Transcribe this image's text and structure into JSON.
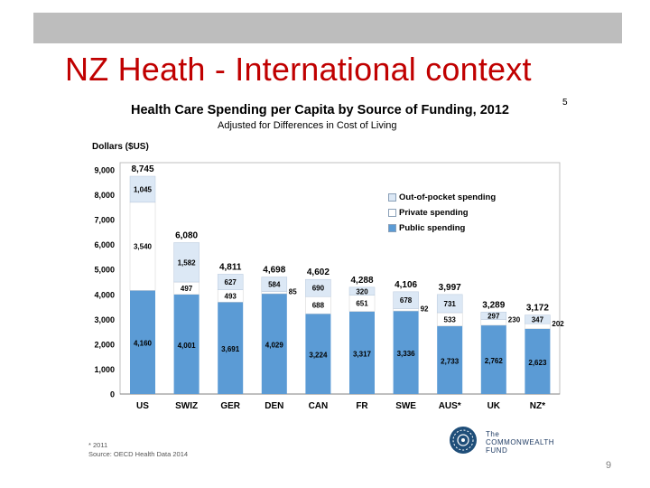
{
  "slide": {
    "title": "NZ Heath - International context",
    "page_number": "9",
    "page_ref": "5"
  },
  "chart_data": {
    "type": "bar",
    "stacked": true,
    "title": "Health Care Spending per Capita by Source of Funding, 2012",
    "subtitle": "Adjusted for Differences in Cost of Living",
    "ylabel": "Dollars ($US)",
    "xlabel": "",
    "ylim": [
      0,
      9000
    ],
    "yticks": [
      "0",
      "1,000",
      "2,000",
      "3,000",
      "4,000",
      "5,000",
      "6,000",
      "7,000",
      "8,000",
      "9,000"
    ],
    "categories": [
      "US",
      "SWIZ",
      "GER",
      "DEN",
      "CAN",
      "FR",
      "SWE",
      "AUS*",
      "UK",
      "NZ*"
    ],
    "series": [
      {
        "name": "Public spending",
        "values": [
          4160,
          4001,
          3691,
          4029,
          3224,
          3317,
          3336,
          2733,
          2762,
          2623
        ],
        "labels": [
          "4,160",
          "4,001",
          "3,691",
          "4,029",
          "3,224",
          "3,317",
          "3,336",
          "2,733",
          "2,762",
          "2,623"
        ],
        "color": "#5b9bd5"
      },
      {
        "name": "Private spending",
        "values": [
          3540,
          497,
          493,
          85,
          688,
          651,
          92,
          533,
          230,
          202
        ],
        "labels": [
          "3,540",
          "497",
          "493",
          "85",
          "688",
          "651",
          "92",
          "533",
          "230",
          "202"
        ],
        "color": "#ffffff"
      },
      {
        "name": "Out-of-pocket spending",
        "values": [
          1045,
          1582,
          627,
          584,
          690,
          320,
          678,
          731,
          297,
          347
        ],
        "labels": [
          "1,045",
          "1,582",
          "627",
          "584",
          "690",
          "320",
          "678",
          "731",
          "297",
          "347"
        ],
        "color": "#dce8f5"
      }
    ],
    "totals": [
      "8,745",
      "6,080",
      "4,811",
      "4,698",
      "4,602",
      "4,288",
      "4,106",
      "3,997",
      "3,289",
      "3,172"
    ],
    "legend_position": "right",
    "legend_order": [
      "Out-of-pocket spending",
      "Private spending",
      "Public spending"
    ],
    "grid": false
  },
  "footnote": {
    "line1": "* 2011",
    "line2": "Source: OECD Health Data 2014"
  },
  "logo": {
    "icon": "commonwealth-fund-emblem",
    "line1": "The",
    "line2": "COMMONWEALTH",
    "line3": "FUND"
  }
}
